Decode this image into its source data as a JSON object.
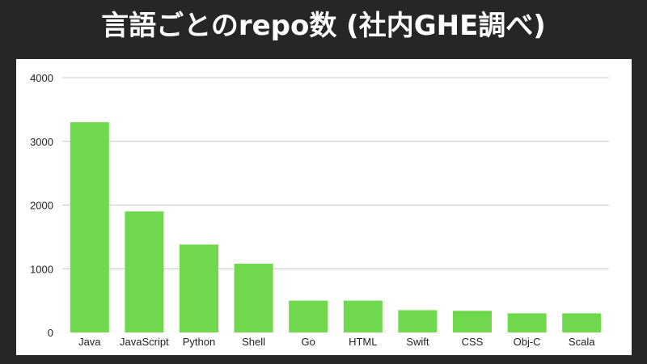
{
  "title": "言語ごとのrepo数 (社内GHE調べ)",
  "colors": {
    "bar": "#6fd84c",
    "grid": "#c8c8c8",
    "background": "#262626",
    "panel": "#ffffff",
    "text": "#222222"
  },
  "chart_data": {
    "type": "bar",
    "title": "言語ごとのrepo数 (社内GHE調べ)",
    "xlabel": "",
    "ylabel": "",
    "categories": [
      "Java",
      "JavaScript",
      "Python",
      "Shell",
      "Go",
      "HTML",
      "Swift",
      "CSS",
      "Obj-C",
      "Scala"
    ],
    "values": [
      3300,
      1900,
      1380,
      1080,
      500,
      500,
      350,
      340,
      300,
      300
    ],
    "ylim": [
      0,
      4000
    ],
    "yticks": [
      0,
      1000,
      2000,
      3000,
      4000
    ],
    "grid": true,
    "legend": "none"
  }
}
